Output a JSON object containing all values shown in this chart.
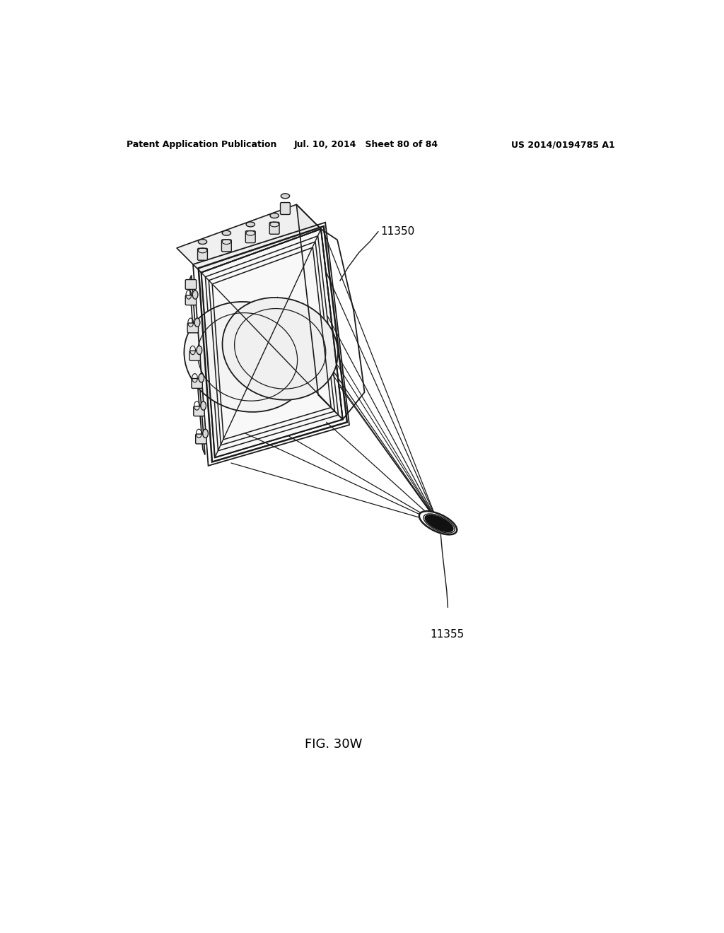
{
  "background_color": "#ffffff",
  "header_left": "Patent Application Publication",
  "header_center": "Jul. 10, 2014   Sheet 80 of 84",
  "header_right": "US 2014/0194785 A1",
  "label_11350": "11350",
  "label_11355": "11355",
  "fig_label": "FIG. 30W",
  "line_color": "#1a1a1a",
  "fill_dark": "#111111",
  "fill_light": "#f5f5f5",
  "fill_mid": "#e8e8e8",
  "header_fontsize": 9,
  "label_fontsize": 11,
  "fig_fontsize": 13
}
